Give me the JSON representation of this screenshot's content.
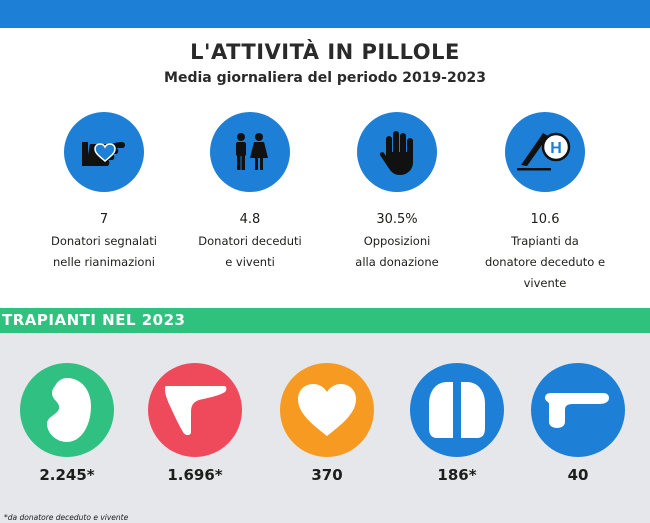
{
  "header": {
    "title": "L'ATTIVITÀ IN PILLOLE",
    "subtitle": "Media giornaliera del periodo 2019-2023"
  },
  "colors": {
    "blue": "#1d7fd6",
    "green": "#2ec27e",
    "kidney": "#2fc082",
    "liver": "#ef4a5c",
    "heart": "#f79a22",
    "lung": "#1d7fd6",
    "pancreas": "#1d7fd6",
    "gray": "#e5e7ea"
  },
  "stats": [
    {
      "icon": "hand-heart-icon",
      "value": "7",
      "label_line1": "Donatori segnalati",
      "label_line2": "nelle rianimazioni"
    },
    {
      "icon": "people-icon",
      "value": "4.8",
      "label_line1": "Donatori deceduti",
      "label_line2": "e viventi"
    },
    {
      "icon": "stop-hand-icon",
      "value": "30.5%",
      "label_line1": "Opposizioni",
      "label_line2": "alla donazione"
    },
    {
      "icon": "scalpel-hospital-icon",
      "value": "10.6",
      "label_line1": "Trapianti da",
      "label_line2": "donatore deceduto e",
      "label_line3": "vivente"
    }
  ],
  "section": {
    "title": "TRAPIANTI NEL 2023"
  },
  "transplants": [
    {
      "organ": "kidney-icon",
      "value": "2.245*"
    },
    {
      "organ": "liver-icon",
      "value": "1.696*"
    },
    {
      "organ": "heart-icon",
      "value": "370"
    },
    {
      "organ": "lungs-icon",
      "value": "186*"
    },
    {
      "organ": "pancreas-icon",
      "value": "40"
    }
  ],
  "footnote": "*da donatore deceduto e vivente"
}
